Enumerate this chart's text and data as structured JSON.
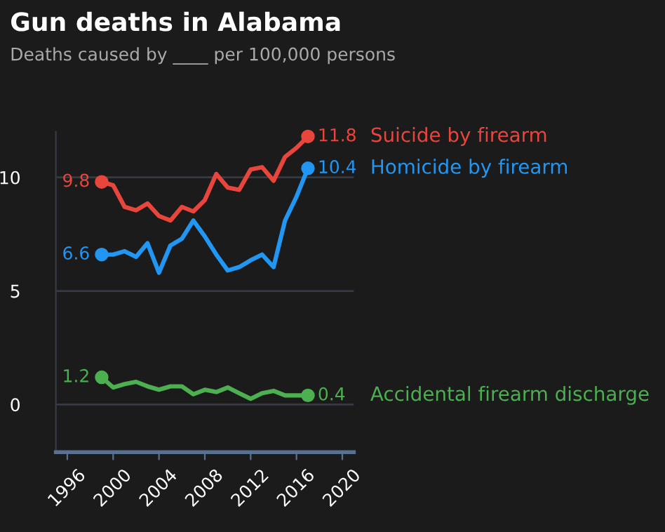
{
  "chart_data": {
    "type": "line",
    "title": "Gun deaths in Alabama",
    "subtitle": "Deaths caused by ____ per 100,000 persons",
    "x": [
      1999,
      2000,
      2001,
      2002,
      2003,
      2004,
      2005,
      2006,
      2007,
      2008,
      2009,
      2010,
      2011,
      2012,
      2013,
      2014,
      2015,
      2016,
      2017
    ],
    "series": [
      {
        "name": "Suicide by firearm",
        "color": "#e8453c",
        "values": [
          9.8,
          9.65,
          8.7,
          8.55,
          8.85,
          8.3,
          8.1,
          8.7,
          8.5,
          9.0,
          10.15,
          9.55,
          9.45,
          10.35,
          10.45,
          9.85,
          10.9,
          11.3,
          11.8
        ],
        "value_labels": [
          "9.8",
          null,
          null,
          null,
          null,
          null,
          null,
          null,
          null,
          null,
          null,
          null,
          null,
          null,
          null,
          null,
          null,
          null,
          "11.8"
        ]
      },
      {
        "name": "Homicide by firearm",
        "color": "#2196f3",
        "values": [
          6.6,
          6.6,
          6.75,
          6.5,
          7.1,
          5.8,
          7.0,
          7.3,
          8.1,
          7.4,
          6.6,
          5.9,
          6.05,
          6.35,
          6.6,
          6.05,
          8.1,
          9.15,
          10.4
        ],
        "value_labels": [
          "6.6",
          null,
          null,
          null,
          null,
          null,
          null,
          null,
          null,
          null,
          null,
          null,
          null,
          null,
          null,
          null,
          null,
          null,
          "10.4"
        ]
      },
      {
        "name": "Accidental firearm discharge",
        "color": "#4caf50",
        "values": [
          1.2,
          0.75,
          0.9,
          1.0,
          0.8,
          0.65,
          0.8,
          0.8,
          0.45,
          0.65,
          0.55,
          0.75,
          0.5,
          0.25,
          0.5,
          0.6,
          0.4,
          0.4,
          0.4
        ],
        "value_labels": [
          "1.2",
          null,
          null,
          null,
          null,
          null,
          null,
          null,
          null,
          null,
          null,
          null,
          null,
          null,
          null,
          null,
          null,
          null,
          "0.4"
        ]
      }
    ],
    "xlim": [
      1995,
      2021
    ],
    "xticks": [
      1996,
      2000,
      2004,
      2008,
      2012,
      2016,
      2020
    ],
    "ylim": [
      -2.1,
      12
    ],
    "yticks": [
      0,
      5,
      10
    ],
    "grid": "y",
    "line_style": "solid",
    "legend": false
  }
}
